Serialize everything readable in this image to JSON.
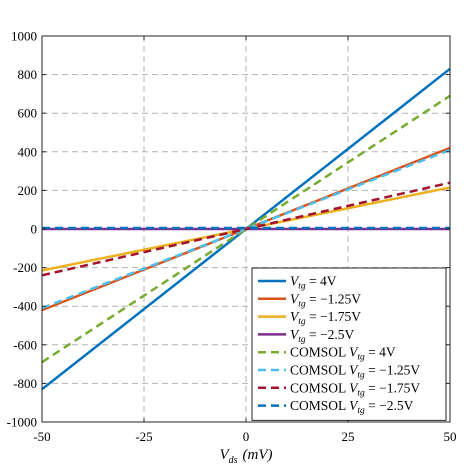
{
  "chart_data": {
    "type": "line",
    "xlabel_main": "V",
    "xlabel_sub": "ds",
    "xlabel_unit": "(mV)",
    "xlim": [
      -50,
      50
    ],
    "ylim": [
      -1000,
      1000
    ],
    "x_ticks": [
      "-50",
      "-25",
      "0",
      "25",
      "50"
    ],
    "y_ticks": [
      "1000",
      "800",
      "600",
      "400",
      "200",
      "0",
      "-200",
      "-400",
      "-600",
      "-800",
      "-1000"
    ],
    "x_tick_values": [
      -50,
      -25,
      0,
      25,
      50
    ],
    "y_tick_values": [
      1000,
      800,
      600,
      400,
      200,
      0,
      -200,
      -400,
      -600,
      -800,
      -1000
    ],
    "grid": true,
    "legend_position": "bottom-right",
    "series": [
      {
        "prefix": "",
        "sub": "tg",
        "value": " = 4V",
        "color": "#0072BD",
        "dash": false,
        "x": [
          -50,
          50
        ],
        "y": [
          -830,
          830
        ]
      },
      {
        "prefix": "",
        "sub": "tg",
        "value": " = −1.25V",
        "color": "#D95319",
        "dash": false,
        "x": [
          -50,
          50
        ],
        "y": [
          -420,
          420
        ]
      },
      {
        "prefix": "",
        "sub": "tg",
        "value": " = −1.75V",
        "color": "#EDB120",
        "dash": false,
        "x": [
          -50,
          50
        ],
        "y": [
          -215,
          215
        ]
      },
      {
        "prefix": "",
        "sub": "tg",
        "value": " = −2.5V",
        "color": "#7E2F8E",
        "dash": false,
        "x": [
          -50,
          50
        ],
        "y": [
          0,
          0
        ]
      },
      {
        "prefix": "COMSOL ",
        "sub": "tg",
        "value": " = 4V",
        "color": "#77AC30",
        "dash": true,
        "x": [
          -50,
          50
        ],
        "y": [
          -690,
          690
        ]
      },
      {
        "prefix": "COMSOL ",
        "sub": "tg",
        "value": " = −1.25V",
        "color": "#4DBEEE",
        "dash": true,
        "x": [
          -50,
          50
        ],
        "y": [
          -410,
          410
        ]
      },
      {
        "prefix": "COMSOL ",
        "sub": "tg",
        "value": " = −1.75V",
        "color": "#A2142F",
        "dash": true,
        "x": [
          -50,
          50
        ],
        "y": [
          -240,
          240
        ]
      },
      {
        "prefix": "COMSOL ",
        "sub": "tg",
        "value": " = −2.5V",
        "color": "#0072BD",
        "dash": true,
        "x": [
          -50,
          50
        ],
        "y": [
          5,
          5
        ]
      }
    ]
  }
}
